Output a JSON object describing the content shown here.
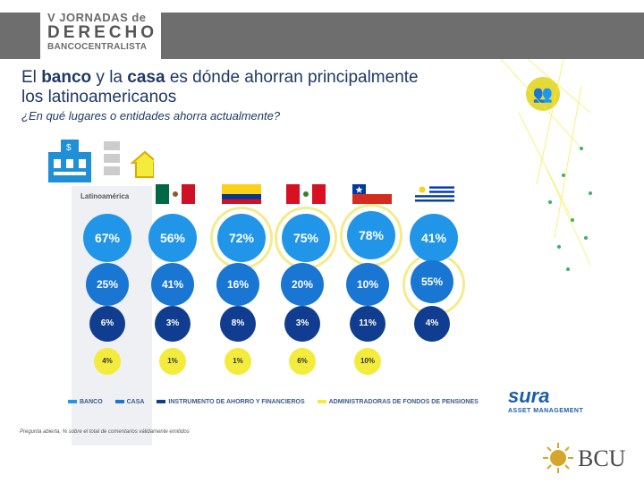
{
  "header": {
    "line1": "V JORNADAS de",
    "line2": "DERECHO",
    "line3": "BANCOCENTRALISTA"
  },
  "slide": {
    "title_part1": "El ",
    "title_bold1": "banco",
    "title_part2": " y la ",
    "title_bold2": "casa",
    "title_part3": " es dónde ahorran principalmente",
    "title_line2": "los latinoamericanos",
    "subtitle": "¿En qué lugares o entidades ahorra actualmente?",
    "column_label": "Latinoamérica",
    "columns": [
      {
        "name": "Latinoamérica",
        "banco": "67%",
        "casa": "25%",
        "inst": "6%",
        "afp": "4%"
      },
      {
        "name": "México",
        "banco": "56%",
        "casa": "41%",
        "inst": "3%",
        "afp": "1%"
      },
      {
        "name": "Colombia",
        "banco": "72%",
        "casa": "16%",
        "inst": "8%",
        "afp": "1%"
      },
      {
        "name": "Perú",
        "banco": "75%",
        "casa": "20%",
        "inst": "3%",
        "afp": "6%"
      },
      {
        "name": "Chile",
        "banco": "78%",
        "casa": "10%",
        "inst": "11%",
        "afp": "10%"
      },
      {
        "name": "Uruguay",
        "banco": "41%",
        "casa": "55%",
        "inst": "4%",
        "afp": ""
      }
    ],
    "legend": {
      "banco": "BANCO",
      "casa": "CASA",
      "inst": "INSTRUMENTO DE AHORRO Y FINANCIEROS",
      "afp": "ADMINISTRADORAS DE FONDOS DE PENSIONES"
    },
    "footnote": "Pregunta abierta, % sobre el total de comentarios válidamente emitidos",
    "colors": {
      "banco": "#2196e8",
      "casa": "#1976d2",
      "inst": "#103d8f",
      "afp": "#f3ec3c"
    }
  },
  "sura": {
    "name": "sura",
    "subtitle": "ASSET MANAGEMENT"
  },
  "bcu": {
    "text": "BCU"
  }
}
